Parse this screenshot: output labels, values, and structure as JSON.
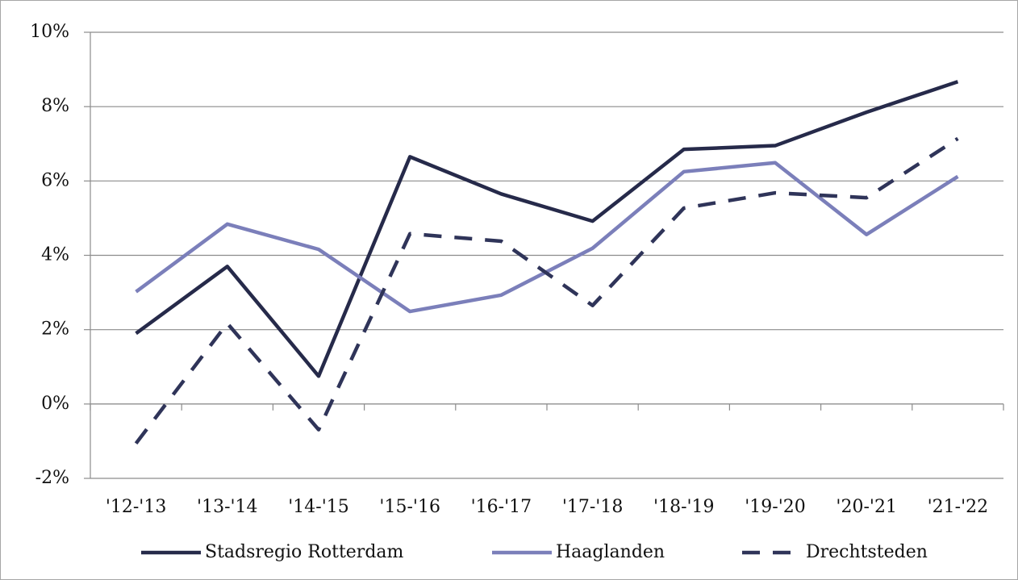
{
  "chart_data": {
    "type": "line",
    "categories": [
      "'12-'13",
      "'13-'14",
      "'14-'15",
      "'15-'16",
      "'16-'17",
      "'17-'18",
      "'18-'19",
      "'19-'20",
      "'20-'21",
      "'21-'22"
    ],
    "series": [
      {
        "name": "Stadsregio Rotterdam",
        "color": "#262a4a",
        "dash": "solid",
        "values": [
          1.9,
          3.7,
          0.75,
          6.65,
          5.65,
          4.92,
          6.85,
          6.95,
          7.85,
          8.67
        ]
      },
      {
        "name": "Haaglanden",
        "color": "#7b7fba",
        "dash": "solid",
        "values": [
          3.02,
          4.84,
          4.16,
          2.49,
          2.93,
          4.19,
          6.25,
          6.49,
          4.56,
          6.12
        ]
      },
      {
        "name": "Drechtsteden",
        "color": "#2f3459",
        "dash": "dashed",
        "values": [
          -1.06,
          2.17,
          -0.69,
          4.58,
          4.38,
          2.65,
          5.27,
          5.68,
          5.55,
          7.14
        ]
      }
    ],
    "ylim": [
      -2,
      10
    ],
    "yticks": [
      {
        "value": -2,
        "label": "-2%"
      },
      {
        "value": 0,
        "label": "0%"
      },
      {
        "value": 2,
        "label": "2%"
      },
      {
        "value": 4,
        "label": "4%"
      },
      {
        "value": 6,
        "label": "6%"
      },
      {
        "value": 8,
        "label": "8%"
      },
      {
        "value": 10,
        "label": "10%"
      }
    ],
    "grid": true,
    "legend": "bottom"
  }
}
